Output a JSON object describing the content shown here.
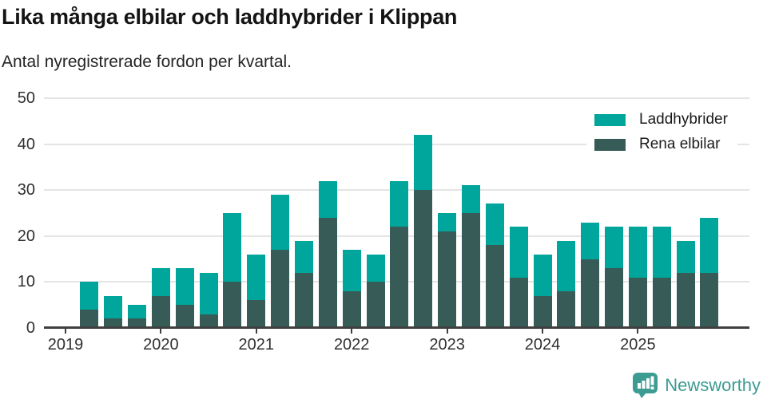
{
  "header": {
    "title": "Lika många elbilar och laddhybrider i Klippan",
    "subtitle": "Antal nyregistrerade fordon per kvartal."
  },
  "legend": {
    "items": [
      {
        "label": "Laddhybrider",
        "color": "#00a69c"
      },
      {
        "label": "Rena elbilar",
        "color": "#375c58"
      }
    ]
  },
  "chart_data": {
    "type": "bar",
    "stacked": true,
    "title": "Lika många elbilar och laddhybrider i Klippan",
    "subtitle": "Antal nyregistrerade fordon per kvartal.",
    "xlabel": "",
    "ylabel": "",
    "ylim": [
      0,
      50
    ],
    "yticks": [
      0,
      10,
      20,
      30,
      40,
      50
    ],
    "xticks": [
      "2019",
      "2020",
      "2021",
      "2022",
      "2023",
      "2024",
      "2025"
    ],
    "grid": true,
    "legend_position": "top-right",
    "categories": [
      "2019 Q2",
      "2019 Q3",
      "2019 Q4",
      "2020 Q1",
      "2020 Q2",
      "2020 Q3",
      "2020 Q4",
      "2021 Q1",
      "2021 Q2",
      "2021 Q3",
      "2021 Q4",
      "2022 Q1",
      "2022 Q2",
      "2022 Q3",
      "2022 Q4",
      "2023 Q1",
      "2023 Q2",
      "2023 Q3",
      "2023 Q4",
      "2024 Q1",
      "2024 Q2",
      "2024 Q3",
      "2024 Q4",
      "2025 Q1",
      "2025 Q2",
      "2025 Q3",
      "2025 Q4"
    ],
    "series": [
      {
        "name": "Rena elbilar",
        "color": "#375c58",
        "values": [
          4,
          2,
          2,
          7,
          5,
          3,
          10,
          6,
          17,
          12,
          24,
          8,
          10,
          22,
          30,
          21,
          25,
          18,
          11,
          7,
          8,
          15,
          13,
          11,
          11,
          12,
          12
        ]
      },
      {
        "name": "Laddhybrider",
        "color": "#00a69c",
        "values": [
          6,
          5,
          3,
          6,
          8,
          9,
          15,
          10,
          12,
          7,
          8,
          9,
          6,
          10,
          12,
          4,
          6,
          9,
          11,
          9,
          11,
          8,
          9,
          11,
          11,
          7,
          12
        ]
      }
    ]
  },
  "footer": {
    "brand": "Newsworthy",
    "brand_color": "#3d9c92"
  }
}
